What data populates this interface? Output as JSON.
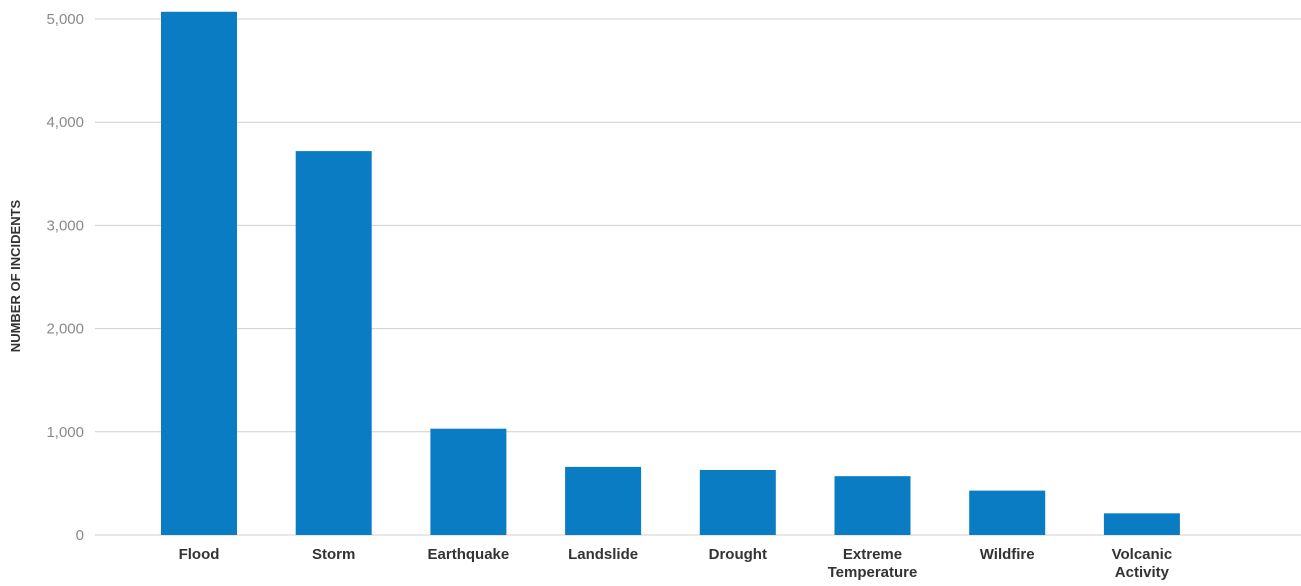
{
  "chart_data": {
    "type": "bar",
    "categories": [
      "Flood",
      "Storm",
      "Earthquake",
      "Landslide",
      "Drought",
      "Extreme Temperature",
      "Wildfire",
      "Volcanic Activity"
    ],
    "category_lines": [
      [
        "Flood"
      ],
      [
        "Storm"
      ],
      [
        "Earthquake"
      ],
      [
        "Landslide"
      ],
      [
        "Drought"
      ],
      [
        "Extreme",
        "Temperature"
      ],
      [
        "Wildfire"
      ],
      [
        "Volcanic",
        "Activity"
      ]
    ],
    "values": [
      5070,
      3720,
      1030,
      660,
      630,
      570,
      430,
      210
    ],
    "title": "",
    "xlabel": "",
    "ylabel": "NUMBER OF INCIDENTS",
    "ylim": [
      0,
      5000
    ],
    "yticks": [
      0,
      1000,
      2000,
      3000,
      4000,
      5000
    ],
    "ytick_labels": [
      "0",
      "1,000",
      "2,000",
      "3,000",
      "4,000",
      "5,000"
    ],
    "grid": true,
    "bar_color": "#0a7cc4"
  }
}
